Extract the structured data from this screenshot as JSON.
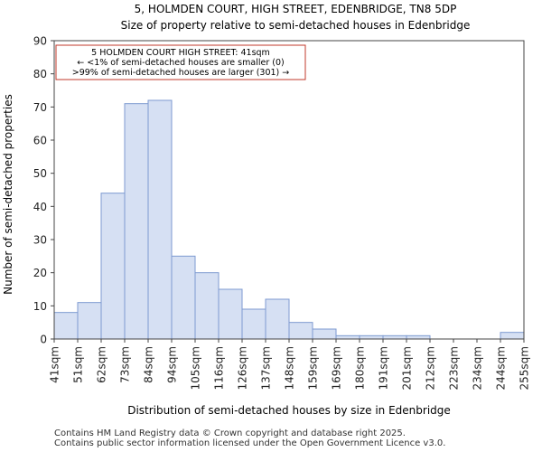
{
  "chart_data": {
    "type": "bar",
    "title": "5, HOLMDEN COURT, HIGH STREET, EDENBRIDGE, TN8 5DP",
    "subtitle": "Size of property relative to semi-detached houses in Edenbridge",
    "xlabel": "Distribution of semi-detached houses by size in Edenbridge",
    "ylabel": "Number of semi-detached properties",
    "ylim": [
      0,
      90
    ],
    "yticks": [
      0,
      10,
      20,
      30,
      40,
      50,
      60,
      70,
      80,
      90
    ],
    "bin_edges": [
      "41sqm",
      "51sqm",
      "62sqm",
      "73sqm",
      "84sqm",
      "94sqm",
      "105sqm",
      "116sqm",
      "126sqm",
      "137sqm",
      "148sqm",
      "159sqm",
      "169sqm",
      "180sqm",
      "191sqm",
      "201sqm",
      "212sqm",
      "223sqm",
      "234sqm",
      "244sqm",
      "255sqm"
    ],
    "values": [
      8,
      11,
      44,
      71,
      72,
      25,
      20,
      15,
      9,
      12,
      5,
      3,
      1,
      1,
      1,
      1,
      0,
      0,
      0,
      2
    ],
    "grid": false,
    "bar_color": "#d6e0f3",
    "bar_edge_color": "#7d9ad0",
    "annotation": {
      "lines": [
        "5 HOLMDEN COURT HIGH STREET: 41sqm",
        "← <1% of semi-detached houses are smaller (0)",
        ">99% of semi-detached houses are larger (301) →"
      ],
      "border_color": "#c0392b"
    }
  },
  "footer": {
    "line1": "Contains HM Land Registry data © Crown copyright and database right 2025.",
    "line2": "Contains public sector information licensed under the Open Government Licence v3.0."
  }
}
